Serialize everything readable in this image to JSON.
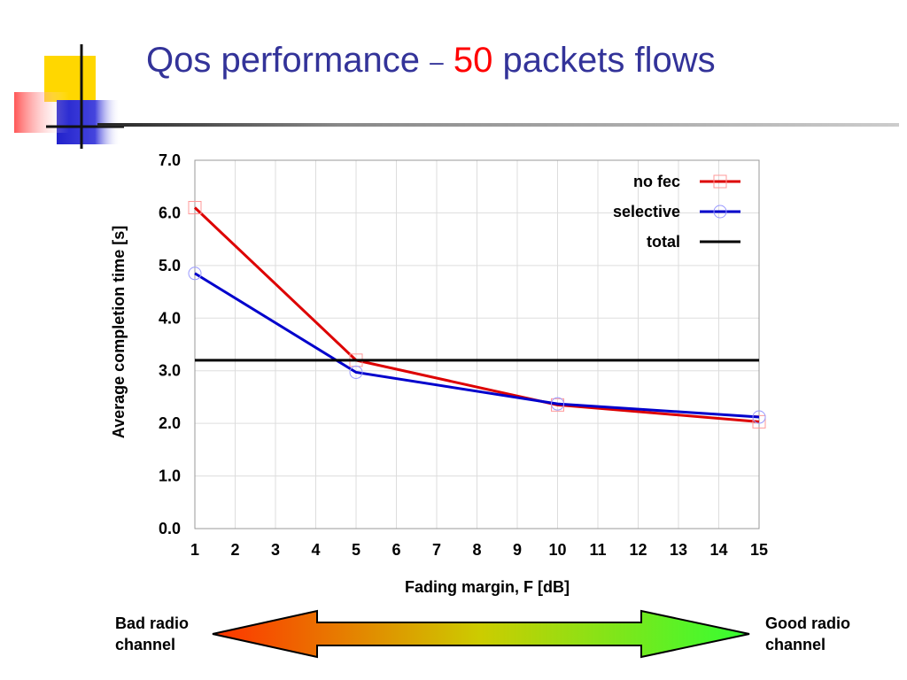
{
  "slide": {
    "title_main": "Qos performance",
    "title_dash": "–",
    "title_number": "50",
    "title_rest": "packets flows",
    "title_color": "#333399",
    "number_color": "#ff0000"
  },
  "chart_data": {
    "type": "line",
    "xlabel": "Fading margin, F [dB]",
    "ylabel": "Average completion time [s]",
    "xlim": [
      1,
      15
    ],
    "ylim": [
      0,
      7
    ],
    "xticks": [
      1,
      2,
      3,
      4,
      5,
      6,
      7,
      8,
      9,
      10,
      11,
      12,
      13,
      14,
      15
    ],
    "yticks": [
      "0.0",
      "1.0",
      "2.0",
      "3.0",
      "4.0",
      "5.0",
      "6.0",
      "7.0"
    ],
    "grid": true,
    "legend_position": "top-right",
    "series": [
      {
        "name": "no fec",
        "color": "#dd0000",
        "marker": "square",
        "x": [
          1,
          5,
          10,
          15
        ],
        "y": [
          6.1,
          3.2,
          2.35,
          2.03
        ]
      },
      {
        "name": "selective",
        "color": "#0000cc",
        "marker": "circle",
        "x": [
          1,
          5,
          10,
          15
        ],
        "y": [
          4.85,
          2.97,
          2.37,
          2.12
        ]
      },
      {
        "name": "total",
        "color": "#000000",
        "marker": "none",
        "x": [
          1,
          15
        ],
        "y": [
          3.2,
          3.2
        ]
      }
    ]
  },
  "channel_scale": {
    "bad_line1": "Bad radio",
    "bad_line2": "channel",
    "good_line1": "Good radio",
    "good_line2": "channel",
    "bad_color": "#ff3300",
    "good_color": "#33ff33"
  }
}
